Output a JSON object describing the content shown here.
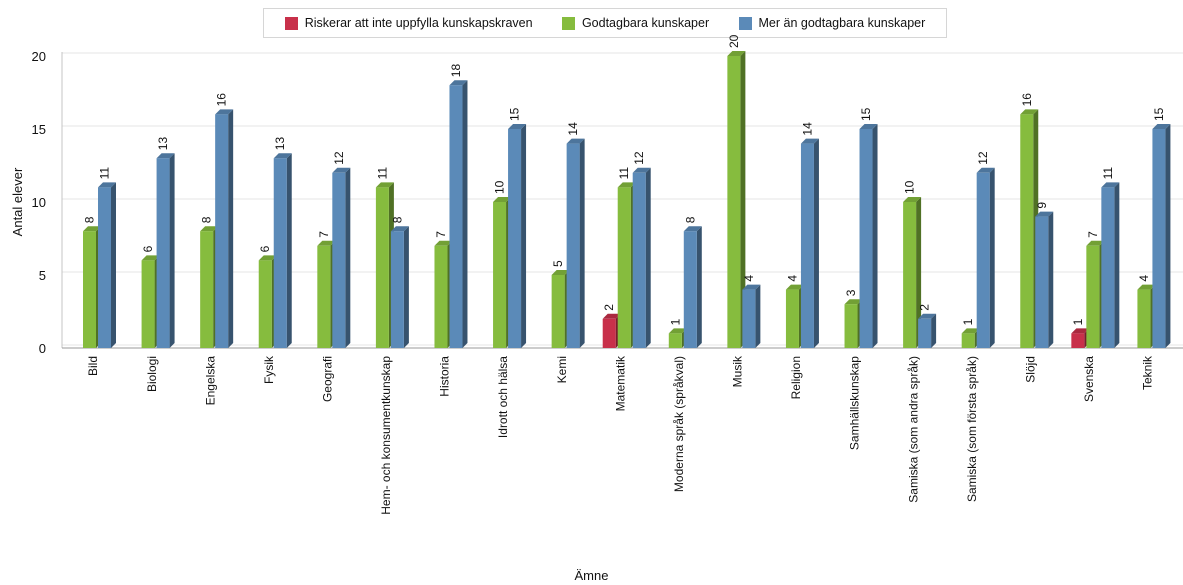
{
  "chart_data": {
    "type": "bar",
    "categories": [
      "Bild",
      "Biologi",
      "Engelska",
      "Fysik",
      "Geografi",
      "Hem- och konsumentkunskap",
      "Historia",
      "Idrott och hälsa",
      "Kemi",
      "Matematik",
      "Moderna språk (språkval)",
      "Musik",
      "Religion",
      "Samhällskunskap",
      "Samiska (som andra språk)",
      "Samiska (som första språk)",
      "Slöjd",
      "Svenska",
      "Teknik"
    ],
    "series": [
      {
        "name": "Riskerar att inte uppfylla kunskapskraven",
        "color": "#c8304a",
        "values": [
          null,
          null,
          null,
          null,
          null,
          null,
          null,
          null,
          null,
          2,
          null,
          null,
          null,
          null,
          null,
          null,
          null,
          1,
          null
        ]
      },
      {
        "name": "Godtagbara kunskaper",
        "color": "#86bc3e",
        "values": [
          8,
          6,
          8,
          6,
          7,
          11,
          7,
          10,
          5,
          11,
          1,
          20,
          4,
          3,
          10,
          1,
          16,
          7,
          4
        ]
      },
      {
        "name": "Mer än godtagbara kunskaper",
        "color": "#5b8ab8",
        "values": [
          11,
          13,
          16,
          13,
          12,
          8,
          18,
          15,
          14,
          12,
          8,
          4,
          14,
          15,
          2,
          12,
          9,
          11,
          15
        ]
      }
    ],
    "xlabel": "Ämne",
    "ylabel": "Antal elever",
    "ylim": [
      0,
      20
    ],
    "yticks": [
      0,
      5,
      10,
      15,
      20
    ],
    "grid": true,
    "legend_position": "top"
  }
}
